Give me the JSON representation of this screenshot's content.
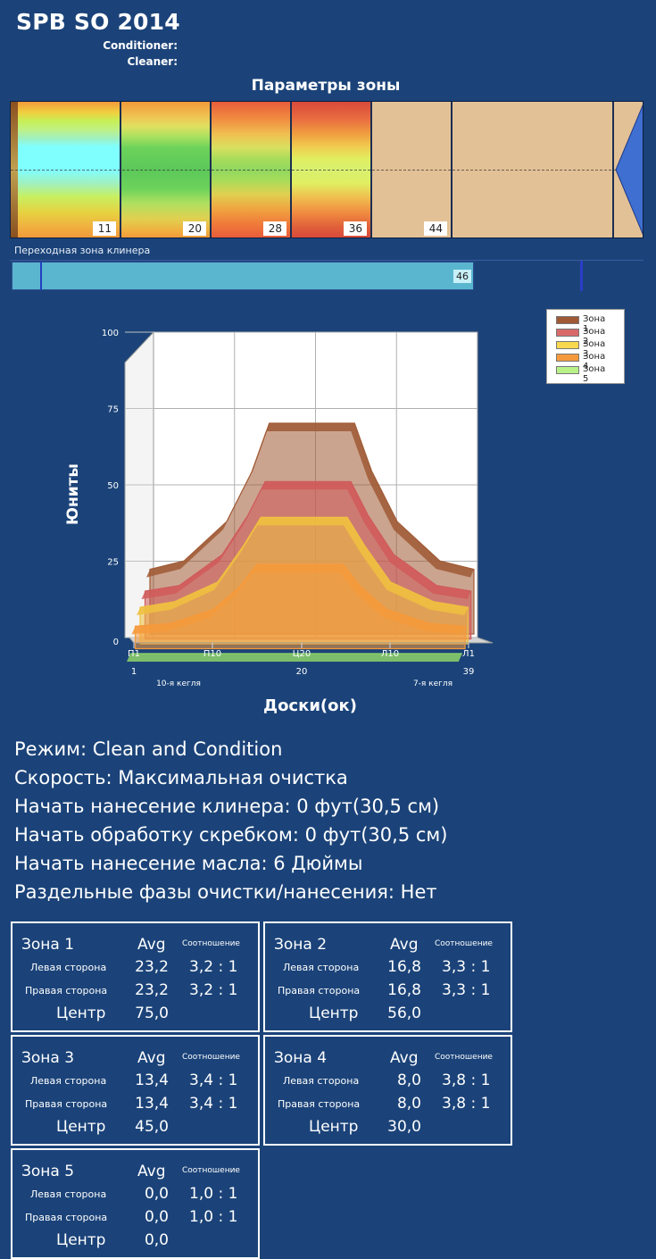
{
  "header": {
    "title": "SPB SO 2014",
    "conditioner_label": "Conditioner:",
    "cleaner_label": "Cleaner:"
  },
  "zone_params": {
    "title": "Параметры зоны",
    "zones": [
      {
        "label": "11"
      },
      {
        "label": "20"
      },
      {
        "label": "28"
      },
      {
        "label": "36"
      },
      {
        "label": "44"
      }
    ]
  },
  "transition": {
    "title": "Переходная зона клинера",
    "value": "46"
  },
  "chart_data": {
    "type": "area",
    "ylabel": "Юниты",
    "xlabel": "Доски(ок)",
    "ylim": [
      0,
      100
    ],
    "yticks": [
      "0",
      "25",
      "50",
      "75",
      "100"
    ],
    "xticks": [
      "П1",
      "П10",
      "Ц20",
      "Л10",
      "Л1"
    ],
    "xticks_num": [
      "1",
      "20",
      "39"
    ],
    "side_labels": [
      "10-я кегля",
      "7-я кегля"
    ],
    "x": [
      1,
      5,
      10,
      13,
      15,
      20,
      25,
      27,
      30,
      35,
      39
    ],
    "series": [
      {
        "name": "Зона 1",
        "color": "#a05a35",
        "values": [
          23,
          26,
          40,
          58,
          75,
          75,
          75,
          58,
          40,
          26,
          23
        ]
      },
      {
        "name": "Зона 2",
        "color": "#d05a5a",
        "values": [
          17,
          19,
          30,
          44,
          56,
          56,
          56,
          44,
          30,
          19,
          17
        ]
      },
      {
        "name": "Зона 3",
        "color": "#f0c040",
        "values": [
          13,
          15,
          22,
          35,
          45,
          45,
          45,
          35,
          22,
          15,
          13
        ]
      },
      {
        "name": "Зона 4",
        "color": "#f59a3c",
        "values": [
          8,
          9,
          14,
          22,
          30,
          30,
          30,
          22,
          14,
          9,
          8
        ]
      },
      {
        "name": "Зона 5",
        "color": "#8ed36a",
        "values": [
          0,
          0,
          0,
          0,
          0,
          0,
          0,
          0,
          0,
          0,
          0
        ]
      }
    ],
    "legend": "top-right"
  },
  "info": {
    "mode": "Режим: Clean and Condition",
    "speed": "Скорость: Максимальная очистка",
    "cleaner_start": "Начать нанесение клинера: 0 фут(30,5 см)",
    "squeegee_start": "Начать обработку скребком: 0 фут(30,5 см)",
    "oil_start": "Начать нанесение масла: 6 Дюймы",
    "separate_phases": "Раздельные фазы очистки/нанесения: Нет"
  },
  "zone_boxes": [
    {
      "name": "Зона 1",
      "avg": "Avg",
      "ratio": "Соотношение",
      "left_label": "Левая сторона",
      "left_val": "23,2",
      "left_ratio": "3,2 : 1",
      "right_label": "Правая сторона",
      "right_val": "23,2",
      "right_ratio": "3,2 : 1",
      "center_label": "Центр",
      "center_val": "75,0"
    },
    {
      "name": "Зона 2",
      "avg": "Avg",
      "ratio": "Соотношение",
      "left_label": "Левая сторона",
      "left_val": "16,8",
      "left_ratio": "3,3 : 1",
      "right_label": "Правая сторона",
      "right_val": "16,8",
      "right_ratio": "3,3 : 1",
      "center_label": "Центр",
      "center_val": "56,0"
    },
    {
      "name": "Зона 3",
      "avg": "Avg",
      "ratio": "Соотношение",
      "left_label": "Левая сторона",
      "left_val": "13,4",
      "left_ratio": "3,4 : 1",
      "right_label": "Правая сторона",
      "right_val": "13,4",
      "right_ratio": "3,4 : 1",
      "center_label": "Центр",
      "center_val": "45,0"
    },
    {
      "name": "Зона 4",
      "avg": "Avg",
      "ratio": "Соотношение",
      "left_label": "Левая сторона",
      "left_val": "8,0",
      "left_ratio": "3,8 : 1",
      "right_label": "Правая сторона",
      "right_val": "8,0",
      "right_ratio": "3,8 : 1",
      "center_label": "Центр",
      "center_val": "30,0"
    },
    {
      "name": "Зона 5",
      "avg": "Avg",
      "ratio": "Соотношение",
      "left_label": "Левая сторона",
      "left_val": "0,0",
      "left_ratio": "1,0 : 1",
      "right_label": "Правая сторона",
      "right_val": "0,0",
      "right_ratio": "1,0 : 1",
      "center_label": "Центр",
      "center_val": "0,0"
    }
  ]
}
